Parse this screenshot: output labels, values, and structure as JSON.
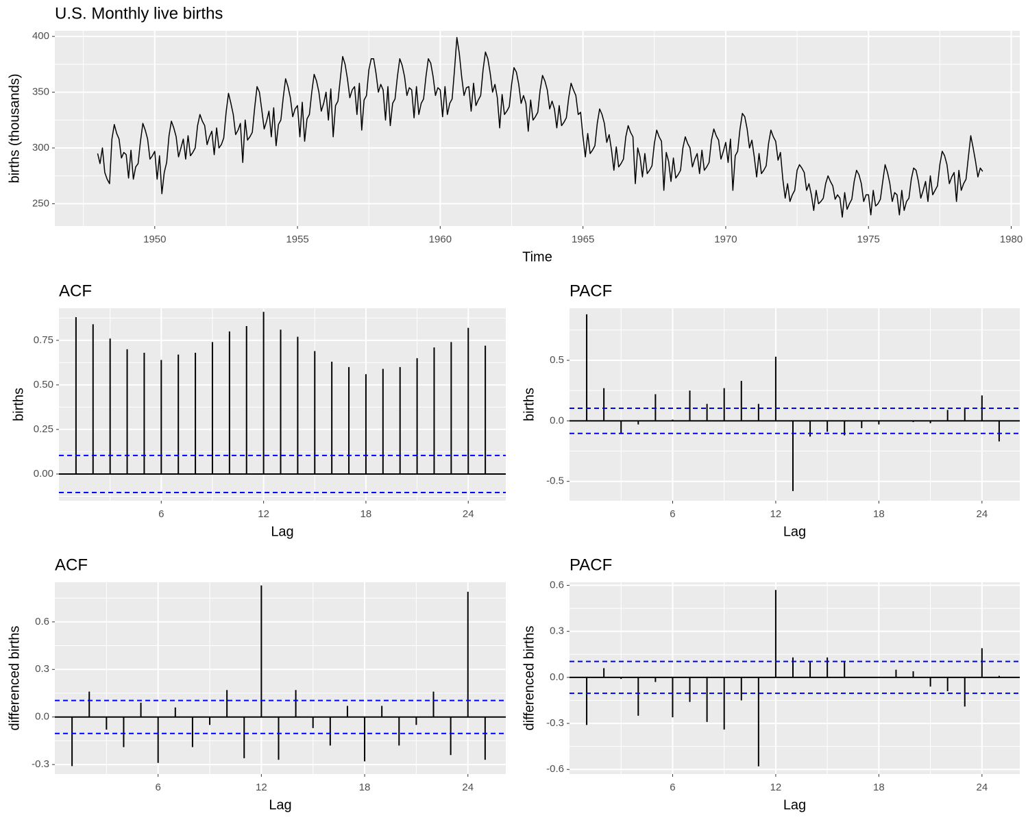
{
  "chart_data": [
    {
      "type": "line",
      "title": "U.S. Monthly live births",
      "x_label": "Time",
      "y_label": "births (thousands)",
      "color": "#000000",
      "grid": true,
      "xlim": [
        1946.5,
        1980.3
      ],
      "xticks": [
        1950,
        1955,
        1960,
        1965,
        1970,
        1975,
        1980
      ],
      "ylim": [
        230,
        405
      ],
      "yticks": [
        250,
        300,
        350,
        400
      ],
      "x": [
        1948,
        1948.083,
        1948.167,
        1948.25,
        1948.333,
        1948.417,
        1948.5,
        1948.583,
        1948.667,
        1948.75,
        1948.833,
        1948.917,
        1949,
        1949.083,
        1949.167,
        1949.25,
        1949.333,
        1949.417,
        1949.5,
        1949.583,
        1949.667,
        1949.75,
        1949.833,
        1949.917,
        1950,
        1950.083,
        1950.167,
        1950.25,
        1950.333,
        1950.417,
        1950.5,
        1950.583,
        1950.667,
        1950.75,
        1950.833,
        1950.917,
        1951,
        1951.083,
        1951.167,
        1951.25,
        1951.333,
        1951.417,
        1951.5,
        1951.583,
        1951.667,
        1951.75,
        1951.833,
        1951.917,
        1952,
        1952.083,
        1952.167,
        1952.25,
        1952.333,
        1952.417,
        1952.5,
        1952.583,
        1952.667,
        1952.75,
        1952.833,
        1952.917,
        1953,
        1953.083,
        1953.167,
        1953.25,
        1953.333,
        1953.417,
        1953.5,
        1953.583,
        1953.667,
        1953.75,
        1953.833,
        1953.917,
        1954,
        1954.083,
        1954.167,
        1954.25,
        1954.333,
        1954.417,
        1954.5,
        1954.583,
        1954.667,
        1954.75,
        1954.833,
        1954.917,
        1955,
        1955.083,
        1955.167,
        1955.25,
        1955.333,
        1955.417,
        1955.5,
        1955.583,
        1955.667,
        1955.75,
        1955.833,
        1955.917,
        1956,
        1956.083,
        1956.167,
        1956.25,
        1956.333,
        1956.417,
        1956.5,
        1956.583,
        1956.667,
        1956.75,
        1956.833,
        1956.917,
        1957,
        1957.083,
        1957.167,
        1957.25,
        1957.333,
        1957.417,
        1957.5,
        1957.583,
        1957.667,
        1957.75,
        1957.833,
        1957.917,
        1958,
        1958.083,
        1958.167,
        1958.25,
        1958.333,
        1958.417,
        1958.5,
        1958.583,
        1958.667,
        1958.75,
        1958.833,
        1958.917,
        1959,
        1959.083,
        1959.167,
        1959.25,
        1959.333,
        1959.417,
        1959.5,
        1959.583,
        1959.667,
        1959.75,
        1959.833,
        1959.917,
        1960,
        1960.083,
        1960.167,
        1960.25,
        1960.333,
        1960.417,
        1960.5,
        1960.583,
        1960.667,
        1960.75,
        1960.833,
        1960.917,
        1961,
        1961.083,
        1961.167,
        1961.25,
        1961.333,
        1961.417,
        1961.5,
        1961.583,
        1961.667,
        1961.75,
        1961.833,
        1961.917,
        1962,
        1962.083,
        1962.167,
        1962.25,
        1962.333,
        1962.417,
        1962.5,
        1962.583,
        1962.667,
        1962.75,
        1962.833,
        1962.917,
        1963,
        1963.083,
        1963.167,
        1963.25,
        1963.333,
        1963.417,
        1963.5,
        1963.583,
        1963.667,
        1963.75,
        1963.833,
        1963.917,
        1964,
        1964.083,
        1964.167,
        1964.25,
        1964.333,
        1964.417,
        1964.5,
        1964.583,
        1964.667,
        1964.75,
        1964.833,
        1964.917,
        1965,
        1965.083,
        1965.167,
        1965.25,
        1965.333,
        1965.417,
        1965.5,
        1965.583,
        1965.667,
        1965.75,
        1965.833,
        1965.917,
        1966,
        1966.083,
        1966.167,
        1966.25,
        1966.333,
        1966.417,
        1966.5,
        1966.583,
        1966.667,
        1966.75,
        1966.833,
        1966.917,
        1967,
        1967.083,
        1967.167,
        1967.25,
        1967.333,
        1967.417,
        1967.5,
        1967.583,
        1967.667,
        1967.75,
        1967.833,
        1967.917,
        1968,
        1968.083,
        1968.167,
        1968.25,
        1968.333,
        1968.417,
        1968.5,
        1968.583,
        1968.667,
        1968.75,
        1968.833,
        1968.917,
        1969,
        1969.083,
        1969.167,
        1969.25,
        1969.333,
        1969.417,
        1969.5,
        1969.583,
        1969.667,
        1969.75,
        1969.833,
        1969.917,
        1970,
        1970.083,
        1970.167,
        1970.25,
        1970.333,
        1970.417,
        1970.5,
        1970.583,
        1970.667,
        1970.75,
        1970.833,
        1970.917,
        1971,
        1971.083,
        1971.167,
        1971.25,
        1971.333,
        1971.417,
        1971.5,
        1971.583,
        1971.667,
        1971.75,
        1971.833,
        1971.917,
        1972,
        1972.083,
        1972.167,
        1972.25,
        1972.333,
        1972.417,
        1972.5,
        1972.583,
        1972.667,
        1972.75,
        1972.833,
        1972.917,
        1973,
        1973.083,
        1973.167,
        1973.25,
        1973.333,
        1973.417,
        1973.5,
        1973.583,
        1973.667,
        1973.75,
        1973.833,
        1973.917,
        1974,
        1974.083,
        1974.167,
        1974.25,
        1974.333,
        1974.417,
        1974.5,
        1974.583,
        1974.667,
        1974.75,
        1974.833,
        1974.917,
        1975,
        1975.083,
        1975.167,
        1975.25,
        1975.333,
        1975.417,
        1975.5,
        1975.583,
        1975.667,
        1975.75,
        1975.833,
        1975.917,
        1976,
        1976.083,
        1976.167,
        1976.25,
        1976.333,
        1976.417,
        1976.5,
        1976.583,
        1976.667,
        1976.75,
        1976.833,
        1976.917,
        1977,
        1977.083,
        1977.167,
        1977.25,
        1977.333,
        1977.417,
        1977.5,
        1977.583,
        1977.667,
        1977.75,
        1977.833,
        1977.917,
        1978,
        1978.083,
        1978.167,
        1978.25,
        1978.333,
        1978.417,
        1978.5,
        1978.583,
        1978.667,
        1978.75,
        1978.833,
        1978.917,
        1979
      ],
      "values": [
        295,
        286,
        300,
        278,
        272,
        268,
        308,
        321,
        313,
        308,
        291,
        296,
        294,
        273,
        298,
        272,
        283,
        286,
        306,
        322,
        316,
        308,
        290,
        293,
        297,
        272,
        293,
        259,
        278,
        287,
        311,
        324,
        318,
        310,
        292,
        300,
        308,
        290,
        311,
        293,
        296,
        300,
        320,
        330,
        324,
        320,
        303,
        310,
        315,
        294,
        318,
        300,
        303,
        309,
        332,
        349,
        340,
        330,
        312,
        316,
        322,
        287,
        325,
        307,
        310,
        314,
        336,
        355,
        350,
        334,
        317,
        324,
        333,
        310,
        336,
        302,
        321,
        325,
        345,
        362,
        355,
        345,
        328,
        335,
        338,
        310,
        341,
        306,
        326,
        330,
        350,
        366,
        360,
        350,
        333,
        340,
        350,
        325,
        353,
        310,
        338,
        342,
        362,
        382,
        375,
        362,
        345,
        352,
        355,
        330,
        358,
        316,
        343,
        347,
        370,
        380,
        380,
        367,
        350,
        357,
        352,
        325,
        355,
        320,
        340,
        344,
        364,
        380,
        374,
        364,
        347,
        354,
        352,
        327,
        355,
        330,
        340,
        344,
        364,
        380,
        376,
        364,
        347,
        354,
        352,
        328,
        355,
        330,
        340,
        344,
        370,
        399,
        385,
        364,
        347,
        354,
        355,
        333,
        358,
        338,
        343,
        347,
        370,
        386,
        380,
        367,
        350,
        357,
        345,
        318,
        348,
        330,
        333,
        337,
        357,
        372,
        368,
        357,
        340,
        347,
        340,
        315,
        343,
        325,
        328,
        332,
        352,
        365,
        360,
        352,
        335,
        342,
        335,
        318,
        338,
        320,
        323,
        327,
        345,
        358,
        352,
        347,
        330,
        332,
        310,
        292,
        313,
        295,
        298,
        302,
        322,
        335,
        330,
        322,
        305,
        312,
        298,
        280,
        301,
        283,
        286,
        290,
        310,
        320,
        314,
        310,
        268,
        300,
        292,
        274,
        295,
        277,
        280,
        284,
        304,
        316,
        310,
        306,
        262,
        296,
        288,
        270,
        291,
        273,
        276,
        280,
        300,
        310,
        304,
        300,
        283,
        290,
        295,
        277,
        298,
        280,
        283,
        287,
        307,
        317,
        311,
        307,
        290,
        297,
        305,
        287,
        308,
        262,
        293,
        297,
        317,
        331,
        328,
        317,
        300,
        307,
        292,
        274,
        295,
        277,
        280,
        284,
        304,
        316,
        310,
        306,
        289,
        296,
        272,
        255,
        268,
        252,
        258,
        262,
        280,
        285,
        282,
        278,
        262,
        268,
        258,
        244,
        262,
        250,
        252,
        255,
        268,
        275,
        270,
        266,
        254,
        258,
        255,
        238,
        260,
        245,
        250,
        254,
        270,
        280,
        276,
        268,
        252,
        258,
        258,
        240,
        262,
        248,
        250,
        254,
        270,
        285,
        278,
        268,
        252,
        260,
        258,
        240,
        262,
        244,
        252,
        255,
        272,
        282,
        280,
        270,
        255,
        262,
        270,
        252,
        275,
        258,
        262,
        266,
        285,
        297,
        293,
        285,
        268,
        274,
        278,
        252,
        280,
        262,
        268,
        272,
        292,
        311,
        300,
        288,
        274,
        282,
        279
      ]
    },
    {
      "type": "stem",
      "title": "ACF",
      "x_label": "Lag",
      "y_label": "births",
      "color": "#000000",
      "ci": 0.104,
      "ci_color": "#0000ff",
      "grid": true,
      "xlim": [
        0,
        26.2
      ],
      "xticks": [
        6,
        12,
        18,
        24
      ],
      "ylim": [
        -0.15,
        0.93
      ],
      "yticks": [
        {
          "value": 0,
          "label": "0.00"
        },
        {
          "value": 0.25,
          "label": "0.25"
        },
        {
          "value": 0.5,
          "label": "0.50"
        },
        {
          "value": 0.75,
          "label": "0.75"
        }
      ],
      "x": [
        1,
        2,
        3,
        4,
        5,
        6,
        7,
        8,
        9,
        10,
        11,
        12,
        13,
        14,
        15,
        16,
        17,
        18,
        19,
        20,
        21,
        22,
        23,
        24,
        25
      ],
      "values": [
        0.88,
        0.84,
        0.76,
        0.7,
        0.68,
        0.64,
        0.67,
        0.68,
        0.74,
        0.8,
        0.83,
        0.91,
        0.81,
        0.77,
        0.69,
        0.63,
        0.6,
        0.56,
        0.59,
        0.6,
        0.65,
        0.71,
        0.74,
        0.82,
        0.72
      ]
    },
    {
      "type": "stem",
      "title": "PACF",
      "x_label": "Lag",
      "y_label": "births",
      "color": "#000000",
      "ci": 0.104,
      "ci_color": "#0000ff",
      "grid": true,
      "xlim": [
        0,
        26.2
      ],
      "xticks": [
        6,
        12,
        18,
        24
      ],
      "ylim": [
        -0.66,
        0.93
      ],
      "yticks": [
        -0.5,
        {
          "value": 0,
          "label": "0.0"
        },
        0.5
      ],
      "x": [
        1,
        2,
        3,
        4,
        5,
        6,
        7,
        8,
        9,
        10,
        11,
        12,
        13,
        14,
        15,
        16,
        17,
        18,
        19,
        20,
        21,
        22,
        23,
        24,
        25
      ],
      "values": [
        0.88,
        0.27,
        -0.1,
        -0.03,
        0.22,
        0.01,
        0.25,
        0.14,
        0.27,
        0.33,
        0.14,
        0.53,
        -0.58,
        -0.13,
        -0.09,
        -0.12,
        -0.06,
        -0.03,
        0.0,
        -0.01,
        -0.02,
        0.09,
        0.11,
        0.21,
        -0.17
      ]
    },
    {
      "type": "stem",
      "title": "ACF",
      "x_label": "Lag",
      "y_label": "differenced births",
      "color": "#000000",
      "ci": 0.104,
      "ci_color": "#0000ff",
      "grid": true,
      "xlim": [
        0,
        26.2
      ],
      "xticks": [
        6,
        12,
        18,
        24
      ],
      "ylim": [
        -0.36,
        0.85
      ],
      "yticks": [
        -0.3,
        {
          "value": 0,
          "label": "0.0"
        },
        0.3,
        0.6
      ],
      "x": [
        1,
        2,
        3,
        4,
        5,
        6,
        7,
        8,
        9,
        10,
        11,
        12,
        13,
        14,
        15,
        16,
        17,
        18,
        19,
        20,
        21,
        22,
        23,
        24,
        25
      ],
      "values": [
        -0.31,
        0.16,
        -0.08,
        -0.19,
        0.09,
        -0.29,
        0.06,
        -0.19,
        -0.05,
        0.17,
        -0.26,
        0.83,
        -0.27,
        0.17,
        -0.07,
        -0.18,
        0.07,
        -0.28,
        0.07,
        -0.18,
        -0.05,
        0.16,
        -0.24,
        0.79,
        -0.27
      ]
    },
    {
      "type": "stem",
      "title": "PACF",
      "x_label": "Lag",
      "y_label": "differenced births",
      "color": "#000000",
      "ci": 0.104,
      "ci_color": "#0000ff",
      "grid": true,
      "xlim": [
        0,
        26.2
      ],
      "xticks": [
        6,
        12,
        18,
        24
      ],
      "ylim": [
        -0.63,
        0.62
      ],
      "yticks": [
        -0.6,
        -0.3,
        {
          "value": 0,
          "label": "0.0"
        },
        0.3,
        0.6
      ],
      "x": [
        1,
        2,
        3,
        4,
        5,
        6,
        7,
        8,
        9,
        10,
        11,
        12,
        13,
        14,
        15,
        16,
        17,
        18,
        19,
        20,
        21,
        22,
        23,
        24,
        25
      ],
      "values": [
        -0.31,
        0.06,
        -0.01,
        -0.25,
        -0.03,
        -0.26,
        -0.16,
        -0.29,
        -0.34,
        -0.15,
        -0.58,
        0.57,
        0.13,
        0.1,
        0.13,
        0.1,
        0.0,
        0.0,
        0.05,
        0.04,
        -0.06,
        -0.09,
        -0.19,
        0.19,
        0.01
      ]
    }
  ]
}
